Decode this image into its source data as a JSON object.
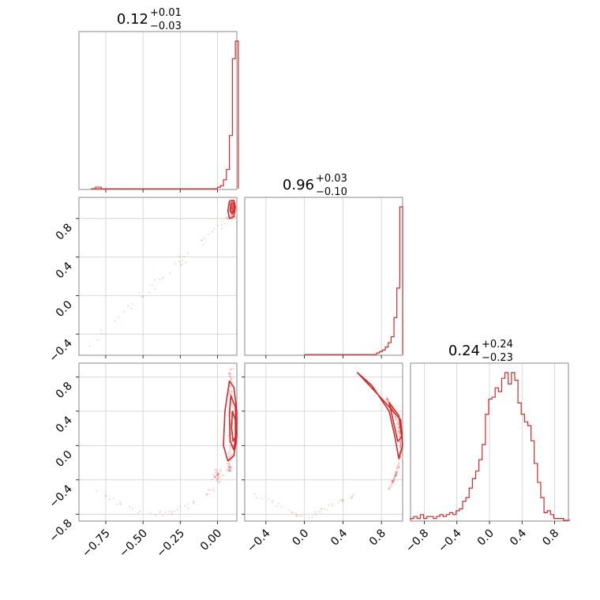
{
  "chart_data": [
    {
      "type": "histogram",
      "panel": "row1-col1",
      "title": {
        "value": "0.12",
        "upper": "+0.01",
        "lower": "−0.03"
      },
      "xlim": [
        -0.93,
        0.13
      ],
      "bins": {
        "x": [
          0.0,
          0.02,
          0.04,
          0.06,
          0.08,
          0.1,
          0.12
        ],
        "heights": [
          0.01,
          0.02,
          0.06,
          0.13,
          0.36,
          0.88,
          1.0
        ]
      },
      "small_bins": [
        {
          "x": -0.8,
          "h": 0.01
        }
      ],
      "grid": true,
      "color": "#d62728"
    },
    {
      "type": "histogram",
      "panel": "row2-col2",
      "title": {
        "value": "0.96",
        "upper": "+0.03",
        "lower": "−0.10"
      },
      "xlim": [
        -0.62,
        1.02
      ],
      "bins": {
        "x": [
          0.75,
          0.78,
          0.81,
          0.84,
          0.87,
          0.9,
          0.93,
          0.96,
          0.99
        ],
        "heights": [
          0.01,
          0.02,
          0.03,
          0.05,
          0.08,
          0.12,
          0.25,
          0.45,
          1.0
        ]
      },
      "grid": true,
      "color": "#d62728"
    },
    {
      "type": "histogram",
      "panel": "row3-col3",
      "title": {
        "value": "0.24",
        "upper": "+0.24",
        "lower": "−0.23"
      },
      "xlim": [
        -0.97,
        0.97
      ],
      "x_ticks": [
        "−0.8",
        "−0.4",
        "0.0",
        "0.4",
        "0.8"
      ],
      "x_tick_values": [
        -0.8,
        -0.4,
        0.0,
        0.4,
        0.8
      ],
      "bin_start": -0.97,
      "bin_width": 0.04,
      "heights": [
        1,
        2,
        1,
        3,
        1,
        2,
        2,
        1,
        2,
        3,
        2,
        3,
        4,
        3,
        5,
        6,
        10,
        12,
        17,
        22,
        26,
        32,
        40,
        56,
        64,
        65,
        70,
        68,
        75,
        78,
        72,
        78,
        74,
        62,
        56,
        52,
        50,
        42,
        30,
        20,
        12,
        4,
        5,
        3,
        1,
        1,
        1,
        0,
        0
      ],
      "grid": true,
      "color": "#d62728"
    },
    {
      "type": "scatter",
      "panel": "row2-col1",
      "xlim": [
        -0.93,
        0.13
      ],
      "ylim": [
        -0.62,
        1.02
      ],
      "y_ticks": [
        "−0.4",
        "0.0",
        "0.4",
        "0.8"
      ],
      "y_tick_values": [
        -0.4,
        0.0,
        0.4,
        0.8
      ],
      "grid": true,
      "color": "#d62728",
      "contours": [
        [
          [
            0.08,
            0.98
          ],
          [
            0.11,
            0.99
          ],
          [
            0.12,
            0.92
          ],
          [
            0.11,
            0.82
          ],
          [
            0.08,
            0.8
          ],
          [
            0.07,
            0.88
          ],
          [
            0.08,
            0.98
          ]
        ],
        [
          [
            0.09,
            0.96
          ],
          [
            0.11,
            0.96
          ],
          [
            0.115,
            0.9
          ],
          [
            0.1,
            0.85
          ],
          [
            0.085,
            0.88
          ],
          [
            0.09,
            0.96
          ]
        ]
      ]
    },
    {
      "type": "scatter",
      "panel": "row3-col1",
      "xlim": [
        -0.93,
        0.13
      ],
      "ylim": [
        -0.88,
        0.96
      ],
      "x_ticks": [
        "−0.75",
        "−0.50",
        "−0.25",
        "0.00"
      ],
      "x_tick_values": [
        -0.75,
        -0.5,
        -0.25,
        0.0
      ],
      "y_ticks": [
        "−0.8",
        "−0.4",
        "0.0",
        "0.4",
        "0.8"
      ],
      "y_tick_values": [
        -0.8,
        -0.4,
        0.0,
        0.4,
        0.8
      ],
      "grid": true,
      "color": "#d62728",
      "contours": [
        [
          [
            0.08,
            0.75
          ],
          [
            0.11,
            0.68
          ],
          [
            0.13,
            0.4
          ],
          [
            0.13,
            0.1
          ],
          [
            0.11,
            -0.12
          ],
          [
            0.07,
            -0.18
          ],
          [
            0.04,
            0.0
          ],
          [
            0.05,
            0.4
          ],
          [
            0.08,
            0.75
          ]
        ],
        [
          [
            0.09,
            0.58
          ],
          [
            0.12,
            0.45
          ],
          [
            0.125,
            0.15
          ],
          [
            0.11,
            -0.05
          ],
          [
            0.085,
            0.05
          ],
          [
            0.08,
            0.38
          ],
          [
            0.09,
            0.58
          ]
        ],
        [
          [
            0.1,
            0.4
          ],
          [
            0.12,
            0.3
          ],
          [
            0.12,
            0.1
          ],
          [
            0.105,
            0.05
          ],
          [
            0.095,
            0.2
          ],
          [
            0.1,
            0.4
          ]
        ]
      ]
    },
    {
      "type": "scatter",
      "panel": "row3-col2",
      "xlim": [
        -0.62,
        1.02
      ],
      "ylim": [
        -0.88,
        0.96
      ],
      "x_ticks": [
        "−0.4",
        "0.0",
        "0.4",
        "0.8"
      ],
      "x_tick_values": [
        -0.4,
        0.0,
        0.4,
        0.8
      ],
      "grid": true,
      "color": "#d62728",
      "contours": [
        [
          [
            0.55,
            0.85
          ],
          [
            0.8,
            0.55
          ],
          [
            1.0,
            0.3
          ],
          [
            1.02,
            0.0
          ],
          [
            0.98,
            -0.15
          ],
          [
            0.94,
            0.1
          ],
          [
            0.88,
            0.4
          ],
          [
            0.7,
            0.7
          ],
          [
            0.55,
            0.85
          ]
        ],
        [
          [
            0.88,
            0.5
          ],
          [
            0.98,
            0.35
          ],
          [
            1.01,
            0.1
          ],
          [
            0.97,
            0.05
          ],
          [
            0.93,
            0.25
          ],
          [
            0.88,
            0.5
          ]
        ]
      ]
    }
  ]
}
